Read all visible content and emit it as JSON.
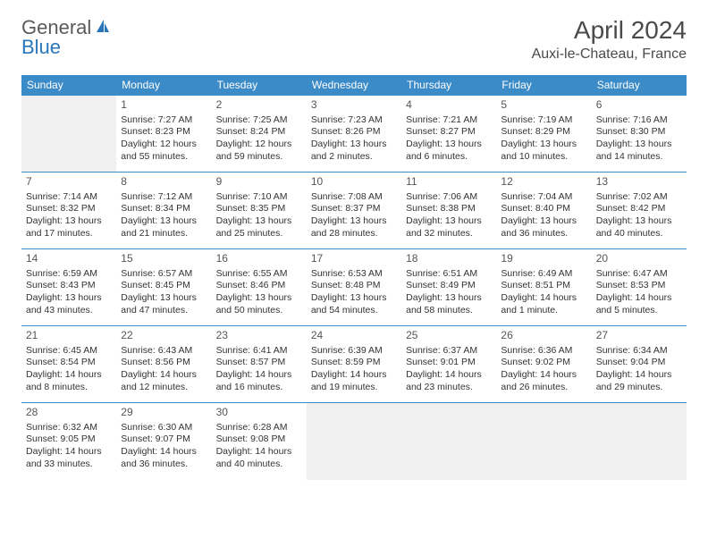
{
  "logo": {
    "word1": "General",
    "word2": "Blue"
  },
  "title": "April 2024",
  "location": "Auxi-le-Chateau, France",
  "headers": [
    "Sunday",
    "Monday",
    "Tuesday",
    "Wednesday",
    "Thursday",
    "Friday",
    "Saturday"
  ],
  "colors": {
    "header_bg": "#3b8bc8",
    "header_text": "#ffffff",
    "border": "#3b8bc8",
    "empty_bg": "#f0f0f0",
    "text": "#333333",
    "logo_gray": "#5a5a5a",
    "logo_blue": "#2976bb"
  },
  "weeks": [
    [
      {
        "empty": true
      },
      {
        "day": "1",
        "sunrise": "Sunrise: 7:27 AM",
        "sunset": "Sunset: 8:23 PM",
        "d1": "Daylight: 12 hours",
        "d2": "and 55 minutes."
      },
      {
        "day": "2",
        "sunrise": "Sunrise: 7:25 AM",
        "sunset": "Sunset: 8:24 PM",
        "d1": "Daylight: 12 hours",
        "d2": "and 59 minutes."
      },
      {
        "day": "3",
        "sunrise": "Sunrise: 7:23 AM",
        "sunset": "Sunset: 8:26 PM",
        "d1": "Daylight: 13 hours",
        "d2": "and 2 minutes."
      },
      {
        "day": "4",
        "sunrise": "Sunrise: 7:21 AM",
        "sunset": "Sunset: 8:27 PM",
        "d1": "Daylight: 13 hours",
        "d2": "and 6 minutes."
      },
      {
        "day": "5",
        "sunrise": "Sunrise: 7:19 AM",
        "sunset": "Sunset: 8:29 PM",
        "d1": "Daylight: 13 hours",
        "d2": "and 10 minutes."
      },
      {
        "day": "6",
        "sunrise": "Sunrise: 7:16 AM",
        "sunset": "Sunset: 8:30 PM",
        "d1": "Daylight: 13 hours",
        "d2": "and 14 minutes."
      }
    ],
    [
      {
        "day": "7",
        "sunrise": "Sunrise: 7:14 AM",
        "sunset": "Sunset: 8:32 PM",
        "d1": "Daylight: 13 hours",
        "d2": "and 17 minutes."
      },
      {
        "day": "8",
        "sunrise": "Sunrise: 7:12 AM",
        "sunset": "Sunset: 8:34 PM",
        "d1": "Daylight: 13 hours",
        "d2": "and 21 minutes."
      },
      {
        "day": "9",
        "sunrise": "Sunrise: 7:10 AM",
        "sunset": "Sunset: 8:35 PM",
        "d1": "Daylight: 13 hours",
        "d2": "and 25 minutes."
      },
      {
        "day": "10",
        "sunrise": "Sunrise: 7:08 AM",
        "sunset": "Sunset: 8:37 PM",
        "d1": "Daylight: 13 hours",
        "d2": "and 28 minutes."
      },
      {
        "day": "11",
        "sunrise": "Sunrise: 7:06 AM",
        "sunset": "Sunset: 8:38 PM",
        "d1": "Daylight: 13 hours",
        "d2": "and 32 minutes."
      },
      {
        "day": "12",
        "sunrise": "Sunrise: 7:04 AM",
        "sunset": "Sunset: 8:40 PM",
        "d1": "Daylight: 13 hours",
        "d2": "and 36 minutes."
      },
      {
        "day": "13",
        "sunrise": "Sunrise: 7:02 AM",
        "sunset": "Sunset: 8:42 PM",
        "d1": "Daylight: 13 hours",
        "d2": "and 40 minutes."
      }
    ],
    [
      {
        "day": "14",
        "sunrise": "Sunrise: 6:59 AM",
        "sunset": "Sunset: 8:43 PM",
        "d1": "Daylight: 13 hours",
        "d2": "and 43 minutes."
      },
      {
        "day": "15",
        "sunrise": "Sunrise: 6:57 AM",
        "sunset": "Sunset: 8:45 PM",
        "d1": "Daylight: 13 hours",
        "d2": "and 47 minutes."
      },
      {
        "day": "16",
        "sunrise": "Sunrise: 6:55 AM",
        "sunset": "Sunset: 8:46 PM",
        "d1": "Daylight: 13 hours",
        "d2": "and 50 minutes."
      },
      {
        "day": "17",
        "sunrise": "Sunrise: 6:53 AM",
        "sunset": "Sunset: 8:48 PM",
        "d1": "Daylight: 13 hours",
        "d2": "and 54 minutes."
      },
      {
        "day": "18",
        "sunrise": "Sunrise: 6:51 AM",
        "sunset": "Sunset: 8:49 PM",
        "d1": "Daylight: 13 hours",
        "d2": "and 58 minutes."
      },
      {
        "day": "19",
        "sunrise": "Sunrise: 6:49 AM",
        "sunset": "Sunset: 8:51 PM",
        "d1": "Daylight: 14 hours",
        "d2": "and 1 minute."
      },
      {
        "day": "20",
        "sunrise": "Sunrise: 6:47 AM",
        "sunset": "Sunset: 8:53 PM",
        "d1": "Daylight: 14 hours",
        "d2": "and 5 minutes."
      }
    ],
    [
      {
        "day": "21",
        "sunrise": "Sunrise: 6:45 AM",
        "sunset": "Sunset: 8:54 PM",
        "d1": "Daylight: 14 hours",
        "d2": "and 8 minutes."
      },
      {
        "day": "22",
        "sunrise": "Sunrise: 6:43 AM",
        "sunset": "Sunset: 8:56 PM",
        "d1": "Daylight: 14 hours",
        "d2": "and 12 minutes."
      },
      {
        "day": "23",
        "sunrise": "Sunrise: 6:41 AM",
        "sunset": "Sunset: 8:57 PM",
        "d1": "Daylight: 14 hours",
        "d2": "and 16 minutes."
      },
      {
        "day": "24",
        "sunrise": "Sunrise: 6:39 AM",
        "sunset": "Sunset: 8:59 PM",
        "d1": "Daylight: 14 hours",
        "d2": "and 19 minutes."
      },
      {
        "day": "25",
        "sunrise": "Sunrise: 6:37 AM",
        "sunset": "Sunset: 9:01 PM",
        "d1": "Daylight: 14 hours",
        "d2": "and 23 minutes."
      },
      {
        "day": "26",
        "sunrise": "Sunrise: 6:36 AM",
        "sunset": "Sunset: 9:02 PM",
        "d1": "Daylight: 14 hours",
        "d2": "and 26 minutes."
      },
      {
        "day": "27",
        "sunrise": "Sunrise: 6:34 AM",
        "sunset": "Sunset: 9:04 PM",
        "d1": "Daylight: 14 hours",
        "d2": "and 29 minutes."
      }
    ],
    [
      {
        "day": "28",
        "sunrise": "Sunrise: 6:32 AM",
        "sunset": "Sunset: 9:05 PM",
        "d1": "Daylight: 14 hours",
        "d2": "and 33 minutes."
      },
      {
        "day": "29",
        "sunrise": "Sunrise: 6:30 AM",
        "sunset": "Sunset: 9:07 PM",
        "d1": "Daylight: 14 hours",
        "d2": "and 36 minutes."
      },
      {
        "day": "30",
        "sunrise": "Sunrise: 6:28 AM",
        "sunset": "Sunset: 9:08 PM",
        "d1": "Daylight: 14 hours",
        "d2": "and 40 minutes."
      },
      {
        "empty": true
      },
      {
        "empty": true
      },
      {
        "empty": true
      },
      {
        "empty": true
      }
    ]
  ]
}
